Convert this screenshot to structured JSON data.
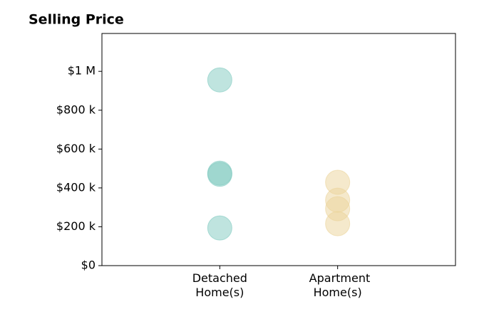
{
  "chart_data": {
    "type": "scatter",
    "title": "Selling Price",
    "xlim": [
      0,
      3
    ],
    "xticks": [
      {
        "value": 1,
        "label": "Detached Home(s)"
      },
      {
        "value": 2,
        "label": "Apartment Home(s)"
      }
    ],
    "ylim": [
      0,
      1195000
    ],
    "yticks": [
      {
        "value": 0,
        "label": "$0"
      },
      {
        "value": 200000,
        "label": "$200 k"
      },
      {
        "value": 400000,
        "label": "$400 k"
      },
      {
        "value": 600000,
        "label": "$600 k"
      },
      {
        "value": 800000,
        "label": "$800 k"
      },
      {
        "value": 1000000,
        "label": "$1 M"
      }
    ],
    "series": [
      {
        "color": "#7fc9c0",
        "x": [
          1,
          1,
          1,
          1
        ],
        "values": [
          956000,
          476000,
          470000,
          194000
        ]
      },
      {
        "color": "#ebd49a",
        "x": [
          2,
          2,
          2,
          2
        ],
        "values": [
          429000,
          337000,
          293000,
          216000
        ]
      }
    ]
  }
}
